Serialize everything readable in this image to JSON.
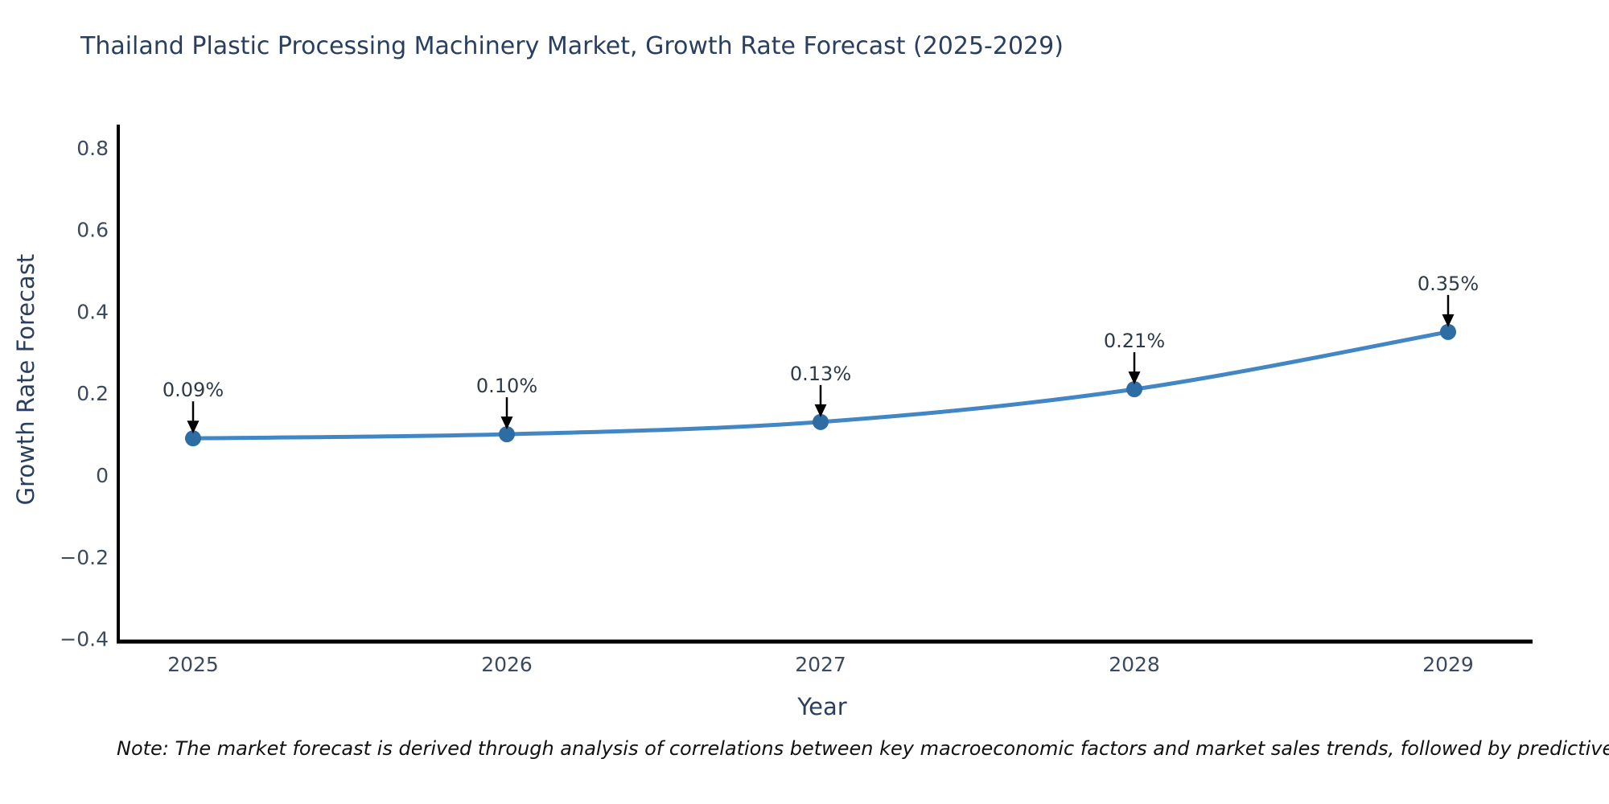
{
  "figure": {
    "note": "Note: The market forecast is derived through analysis of correlations between key macroeconomic factors and market sales trends, followed by predictive modeling to project future sales"
  },
  "chart_data": {
    "type": "line",
    "title": "Thailand Plastic Processing Machinery Market, Growth Rate Forecast (2025-2029)",
    "xlabel": "Year",
    "ylabel": "Growth Rate Forecast",
    "categories": [
      "2025",
      "2026",
      "2027",
      "2028",
      "2029"
    ],
    "values": [
      0.09,
      0.1,
      0.13,
      0.21,
      0.35
    ],
    "point_labels": [
      "0.09%",
      "0.10%",
      "0.13%",
      "0.21%",
      "0.35%"
    ],
    "y_ticks": [
      0.8,
      0.6,
      0.4,
      0.2,
      0,
      -0.2,
      -0.4
    ],
    "y_tick_labels": [
      "0.8",
      "0.6",
      "0.4",
      "0.2",
      "0",
      "−0.2",
      "−0.4"
    ],
    "ylim": [
      -0.407,
      0.857
    ],
    "grid": false,
    "legend": "none",
    "line_color": "#4287c4",
    "marker_color": "#2e6da4",
    "axis_color": "#000000",
    "annotation_arrow_color": "#000000"
  }
}
